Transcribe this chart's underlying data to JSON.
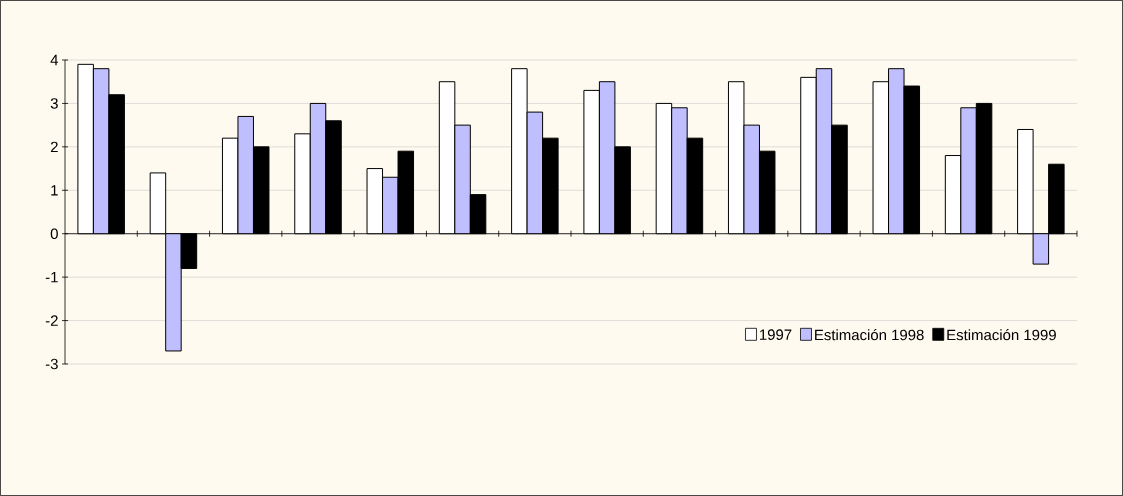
{
  "chart_data": {
    "type": "bar",
    "categories": [
      null,
      null,
      null,
      null,
      null,
      null,
      null,
      null,
      null,
      null,
      null,
      null,
      null,
      null
    ],
    "series": [
      {
        "name": "1997",
        "color": "#ffffff",
        "values": [
          3.9,
          1.4,
          2.2,
          2.3,
          1.5,
          3.5,
          3.8,
          3.3,
          3.0,
          3.5,
          3.6,
          3.5,
          1.8,
          2.4
        ]
      },
      {
        "name": "Estimación 1998",
        "color": "#bfbfff",
        "values": [
          3.8,
          -2.7,
          2.7,
          3.0,
          1.3,
          2.5,
          2.8,
          3.5,
          2.9,
          2.5,
          3.8,
          3.8,
          2.9,
          -0.7
        ]
      },
      {
        "name": "Estimación 1999",
        "color": "#000000",
        "values": [
          3.2,
          -0.8,
          2.0,
          2.6,
          1.9,
          0.9,
          2.2,
          2.0,
          2.2,
          1.9,
          2.5,
          3.4,
          3.0,
          1.6
        ]
      }
    ],
    "ylim": [
      -3,
      4
    ],
    "yticks": [
      -3,
      -2,
      -1,
      0,
      1,
      2,
      3,
      4
    ],
    "grid": "y",
    "legend": "bottom right"
  }
}
